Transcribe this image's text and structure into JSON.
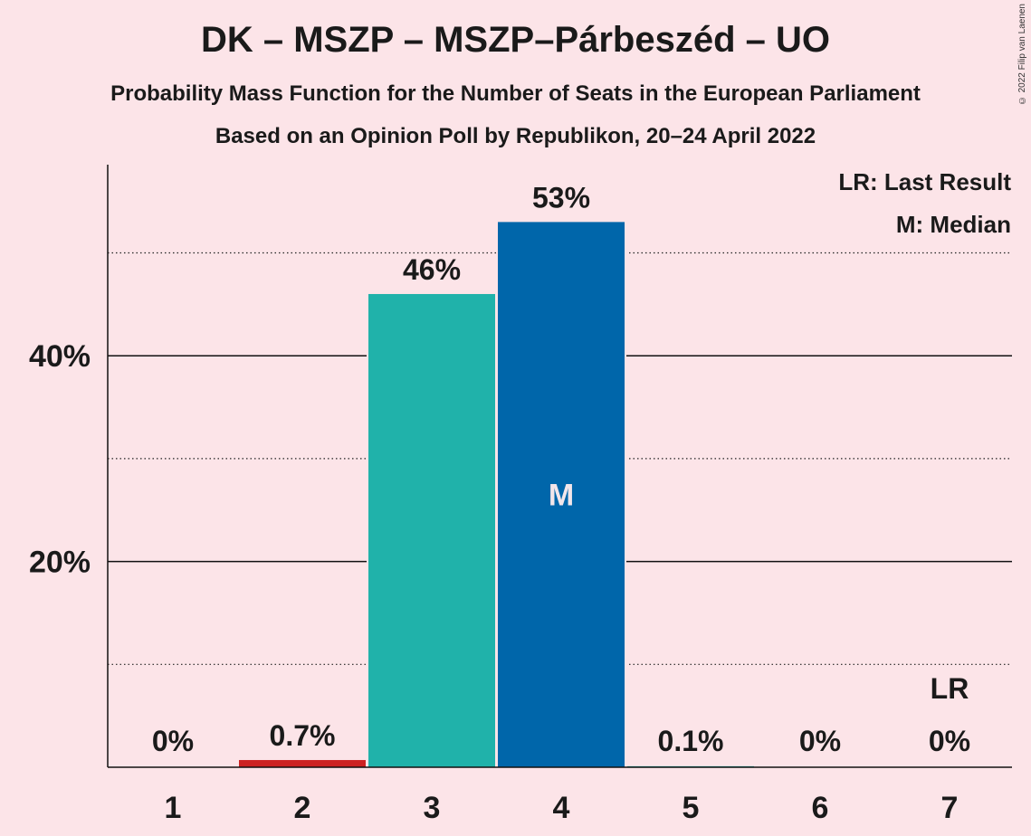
{
  "chart_data": {
    "type": "bar",
    "title": "DK – MSZP – MSZP–Párbeszéd – UO",
    "subtitle": "Probability Mass Function for the Number of Seats in the European Parliament",
    "subtitle2": "Based on an Opinion Poll by Republikon, 20–24 April 2022",
    "copyright": "© 2022 Filip van Laenen",
    "categories": [
      "1",
      "2",
      "3",
      "4",
      "5",
      "6",
      "7"
    ],
    "values": [
      0,
      0.7,
      46,
      53,
      0.1,
      0,
      0
    ],
    "labels": [
      "0%",
      "0.7%",
      "46%",
      "53%",
      "0.1%",
      "0%",
      "0%"
    ],
    "colors": [
      "#e8a0a8",
      "#cc2222",
      "#20b2aa",
      "#0066aa",
      "#20b2aa",
      "#20b2aa",
      "#20b2aa"
    ],
    "median_index": 3,
    "median_marker": "M",
    "last_result_index": 6,
    "last_result_marker": "LR",
    "yticks": [
      20,
      40
    ],
    "ytick_labels": [
      "20%",
      "40%"
    ],
    "minor_gridlines": [
      10,
      30,
      50
    ],
    "ylim": [
      0,
      58
    ],
    "legend": [
      "LR: Last Result",
      "M: Median"
    ],
    "legend_position": "top-right"
  }
}
